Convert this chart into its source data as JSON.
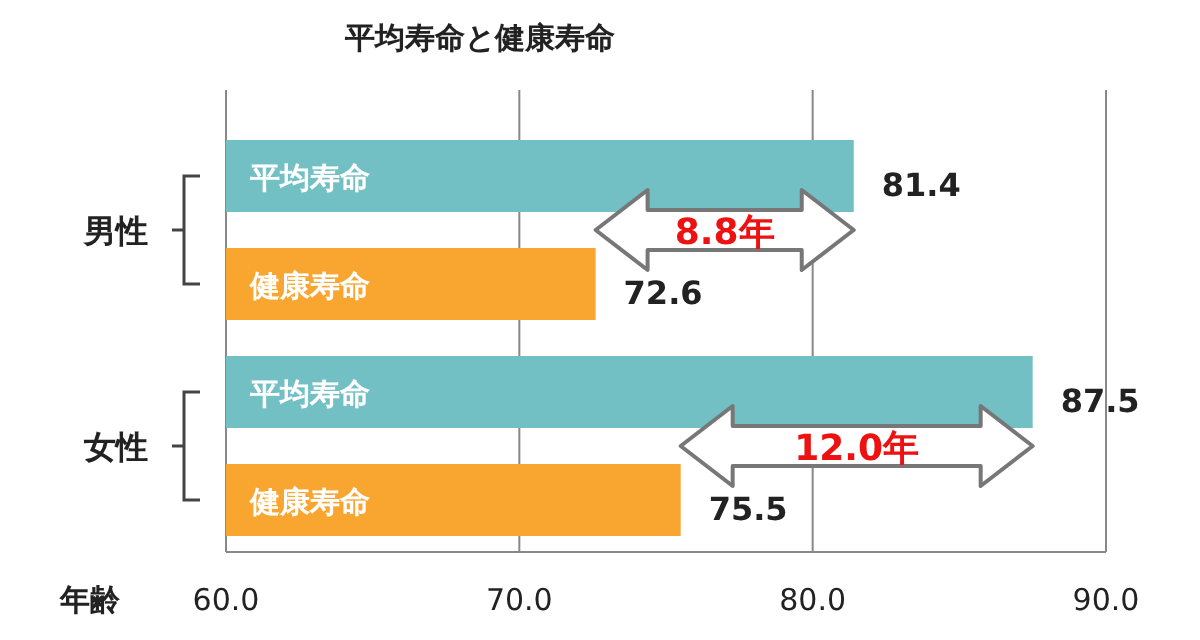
{
  "chart_data": {
    "type": "bar",
    "orientation": "horizontal",
    "title": "平均寿命と健康寿命",
    "xlabel": "年齢",
    "categories": [
      "男性",
      "女性"
    ],
    "series": [
      {
        "name": "平均寿命",
        "color": "#72bfc4",
        "values": [
          81.4,
          87.5
        ]
      },
      {
        "name": "健康寿命",
        "color": "#f9a630",
        "values": [
          72.6,
          75.5
        ]
      }
    ],
    "xlim": [
      60,
      90
    ],
    "xticks": [
      {
        "value": 60,
        "label": "60.0"
      },
      {
        "value": 70,
        "label": "70.0"
      },
      {
        "value": 80,
        "label": "80.0"
      },
      {
        "value": 90,
        "label": "90.0"
      }
    ],
    "grid": "x",
    "data_labels": true,
    "annotations": [
      "8.8年",
      "12.0年"
    ]
  }
}
